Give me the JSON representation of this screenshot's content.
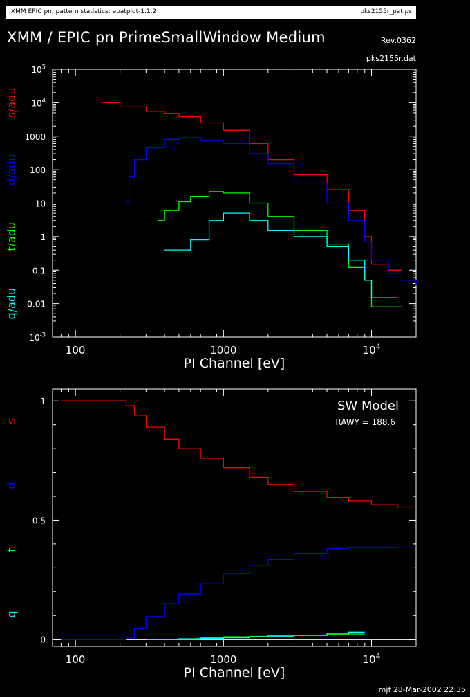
{
  "header": {
    "left": "XMM EPIC pn, pattern statistics: epatplot-1.1.2",
    "right": "pks2155r_pat.ps"
  },
  "title": "XMM / EPIC pn PrimeSmallWindow Medium",
  "revolution": "Rev.0362",
  "filename": "pks2155r.dat",
  "footer": "mjf 28-Mar-2002 22:35",
  "colors": {
    "s": "#ff0000",
    "d": "#0000ff",
    "t": "#00ff00",
    "q": "#00ffff"
  },
  "chart_data": [
    {
      "type": "line",
      "xscale": "log",
      "yscale": "log",
      "xlabel": "PI Channel [eV]",
      "ylim": [
        0.001,
        100000
      ],
      "xlim": [
        70,
        20000
      ],
      "x_tick_labels": [
        "100",
        "1000",
        "10^4"
      ],
      "y_tick_labels": [
        "10^-3",
        "0.01",
        "0.1",
        "1",
        "10",
        "100",
        "1000",
        "10^4",
        "10^5"
      ],
      "ylabels": [
        "s/adu",
        "d/adu",
        "t/adu",
        "q/adu"
      ],
      "series": [
        {
          "name": "s/adu",
          "color": "#ff0000",
          "x": [
            150,
            200,
            300,
            400,
            500,
            700,
            1000,
            1500,
            2000,
            3000,
            5000,
            7000,
            9000,
            10000,
            13000,
            16000
          ],
          "y": [
            10000,
            7500,
            5500,
            4800,
            3800,
            2500,
            1500,
            600,
            200,
            70,
            25,
            6,
            1,
            0.15,
            0.1,
            0.1
          ]
        },
        {
          "name": "d/adu",
          "color": "#0000ff",
          "x": [
            220,
            230,
            250,
            300,
            400,
            500,
            700,
            1000,
            1500,
            2000,
            3000,
            5000,
            7000,
            9000,
            10000,
            13000,
            16000,
            20000
          ],
          "y": [
            11,
            60,
            200,
            450,
            800,
            900,
            750,
            600,
            300,
            150,
            40,
            10,
            3,
            0.7,
            0.2,
            0.08,
            0.05,
            0.035
          ]
        },
        {
          "name": "t/adu",
          "color": "#00ff00",
          "x": [
            360,
            400,
            500,
            600,
            800,
            1000,
            1500,
            2000,
            3000,
            5000,
            7000,
            9000,
            10000,
            16000
          ],
          "y": [
            3,
            6,
            11,
            16,
            22,
            20,
            10,
            4,
            1.5,
            0.6,
            0.12,
            0.05,
            0.008,
            0.008
          ]
        },
        {
          "name": "q/adu",
          "color": "#00ffff",
          "x": [
            400,
            500,
            600,
            800,
            1000,
            1500,
            2000,
            3000,
            5000,
            7000,
            9000,
            10000,
            15000
          ],
          "y": [
            0.4,
            0.4,
            0.8,
            3,
            5,
            3,
            1.5,
            1,
            0.5,
            0.2,
            0.05,
            0.015,
            0.015
          ]
        }
      ]
    },
    {
      "type": "line",
      "xscale": "log",
      "xlabel": "PI Channel [eV]",
      "ylim": [
        -0.03,
        1.05
      ],
      "xlim": [
        70,
        20000
      ],
      "x_tick_labels": [
        "100",
        "1000",
        "10^4"
      ],
      "y_tick_labels": [
        "0",
        "0.5",
        "1"
      ],
      "ylabels": [
        "s",
        "d",
        "t",
        "q"
      ],
      "model_label": "SW Model",
      "rawy_label": "RAWY = 188.6",
      "series": [
        {
          "name": "s",
          "color": "#ff0000",
          "x": [
            80,
            100,
            150,
            200,
            220,
            250,
            300,
            400,
            500,
            700,
            1000,
            1500,
            2000,
            3000,
            5000,
            7000,
            10000,
            15000,
            20000
          ],
          "y": [
            1,
            1,
            1,
            1,
            0.98,
            0.94,
            0.89,
            0.84,
            0.8,
            0.76,
            0.72,
            0.68,
            0.65,
            0.62,
            0.595,
            0.58,
            0.565,
            0.555,
            0.553
          ]
        },
        {
          "name": "d",
          "color": "#0000ff",
          "x": [
            80,
            150,
            200,
            220,
            250,
            300,
            400,
            500,
            700,
            1000,
            1500,
            2000,
            3000,
            5000,
            7000,
            10000,
            15000,
            20000
          ],
          "y": [
            0,
            0,
            0,
            0.005,
            0.045,
            0.095,
            0.15,
            0.19,
            0.235,
            0.275,
            0.31,
            0.335,
            0.36,
            0.38,
            0.385,
            0.385,
            0.387,
            0.388
          ]
        },
        {
          "name": "t",
          "color": "#00ff00",
          "x": [
            300,
            500,
            700,
            1000,
            1500,
            2000,
            3000,
            5000,
            7000,
            9000
          ],
          "y": [
            0,
            0.002,
            0.006,
            0.01,
            0.012,
            0.014,
            0.016,
            0.02,
            0.022,
            0.022
          ]
        },
        {
          "name": "q",
          "color": "#00ffff",
          "x": [
            300,
            500,
            700,
            1000,
            1500,
            2000,
            3000,
            5000,
            7000,
            9000
          ],
          "y": [
            0,
            0.001,
            0.003,
            0.006,
            0.01,
            0.013,
            0.017,
            0.025,
            0.03,
            0.03
          ]
        }
      ]
    }
  ]
}
